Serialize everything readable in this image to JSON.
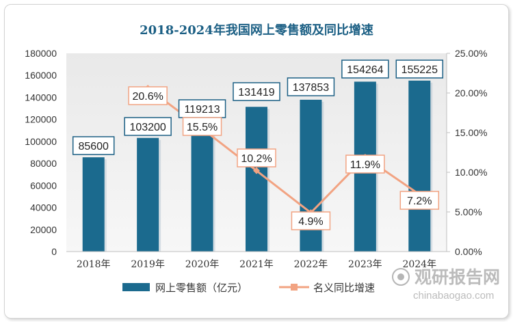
{
  "chart_data": {
    "type": "bar+line",
    "title": "2018-2024年我国网上零售额及同比增速",
    "categories": [
      "2018年",
      "2019年",
      "2020年",
      "2021年",
      "2022年",
      "2023年",
      "2024年"
    ],
    "series": [
      {
        "name": "网上零售额（亿元）",
        "type": "bar",
        "axis": "left",
        "values": [
          85600,
          103200,
          119213,
          131419,
          137853,
          154264,
          155225
        ],
        "labels": [
          "85600",
          "103200",
          "119213",
          "131419",
          "137853",
          "154264",
          "155225"
        ],
        "color": "#1b6a8e"
      },
      {
        "name": "名义同比增速",
        "type": "line",
        "axis": "right",
        "values": [
          null,
          20.6,
          15.5,
          10.2,
          4.9,
          11.9,
          7.2
        ],
        "labels": [
          "",
          "20.6%",
          "15.5%",
          "10.2%",
          "4.9%",
          "11.9%",
          "7.2%"
        ],
        "color": "#f2a382"
      }
    ],
    "y_left": {
      "range": [
        0,
        180000
      ],
      "ticks": [
        "0",
        "20000",
        "40000",
        "60000",
        "80000",
        "100000",
        "120000",
        "140000",
        "160000",
        "180000"
      ]
    },
    "y_right": {
      "range": [
        0,
        25
      ],
      "ticks": [
        "0.00%",
        "5.00%",
        "10.00%",
        "15.00%",
        "20.00%",
        "25.00%"
      ]
    },
    "grid": false,
    "legend_position": "bottom"
  },
  "watermark": {
    "text": "观研报告网",
    "url": "chinabaogao.com"
  }
}
